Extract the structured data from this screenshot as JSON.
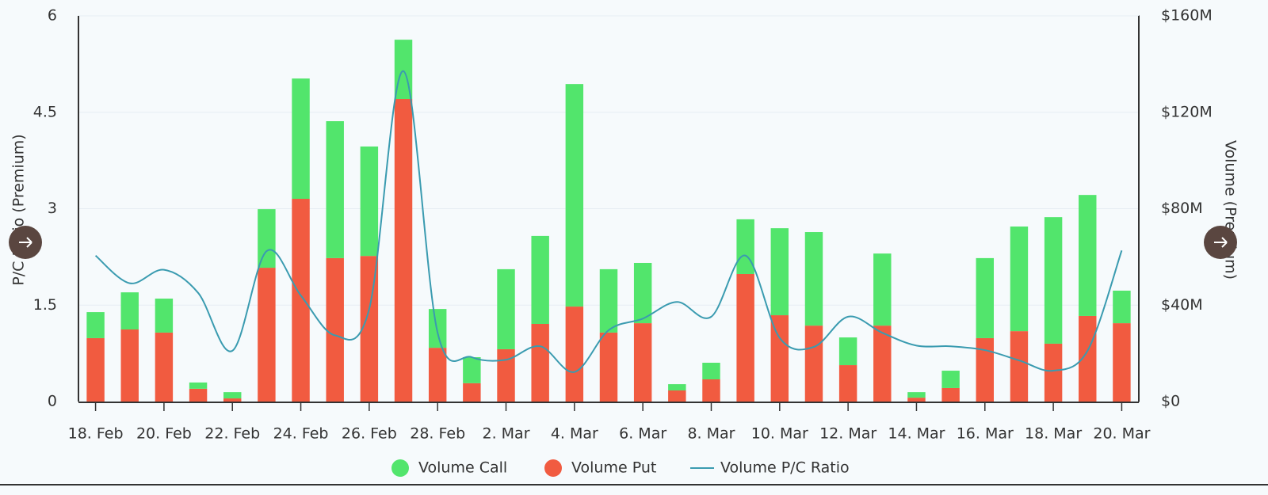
{
  "chart_data": {
    "type": "bar",
    "categories": [
      "18. Feb",
      null,
      "20. Feb",
      null,
      "22. Feb",
      null,
      "24. Feb",
      null,
      "26. Feb",
      null,
      "28. Feb",
      null,
      "2. Mar",
      null,
      "4. Mar",
      null,
      "6. Mar",
      null,
      "8. Mar",
      null,
      "10. Mar",
      null,
      "12. Mar",
      null,
      "14. Mar",
      null,
      "16. Mar",
      null,
      "18. Mar",
      null,
      "20. Mar"
    ],
    "y_label": "P/C Ratio (Premium)",
    "y2_label": "Volume (Premium)",
    "ylim": [
      0,
      6
    ],
    "yticks": [
      0,
      1.5,
      3,
      4.5,
      6
    ],
    "y2lim": [
      0,
      160000000
    ],
    "y2ticks": [
      {
        "value": 0,
        "label": "$0"
      },
      {
        "value": 40000000,
        "label": "$40M"
      },
      {
        "value": 80000000,
        "label": "$80M"
      },
      {
        "value": 120000000,
        "label": "$120M"
      },
      {
        "value": 160000000,
        "label": "$160M"
      }
    ],
    "grid": true,
    "stacked": true,
    "series": [
      {
        "name": "Volume Call",
        "color": "#52e56c",
        "axis": "y2",
        "type": "bar",
        "values": [
          10800000,
          15400000,
          14100000,
          2600000,
          2600000,
          24300000,
          49900000,
          56800000,
          45400000,
          24600000,
          16100000,
          10800000,
          33200000,
          36500000,
          92300000,
          26300000,
          25000000,
          2600000,
          6900000,
          22700000,
          36100000,
          38800000,
          11500000,
          29900000,
          2300000,
          7200000,
          33200000,
          43400000,
          52500000,
          50200000,
          13500000
        ]
      },
      {
        "name": "Volume Put",
        "color": "#f15b40",
        "axis": "y2",
        "type": "bar",
        "values": [
          26300000,
          29900000,
          28600000,
          5300000,
          1300000,
          55500000,
          84100000,
          59500000,
          60400000,
          125500000,
          22300000,
          7600000,
          21700000,
          32200000,
          39400000,
          28600000,
          32500000,
          4600000,
          9200000,
          52900000,
          35800000,
          31500000,
          15100000,
          31500000,
          1600000,
          5600000,
          26300000,
          29200000,
          24000000,
          35500000,
          32500000
        ]
      },
      {
        "name": "Volume P/C Ratio",
        "color": "#3a9bb0",
        "type": "line",
        "values": [
          2.27,
          1.84,
          2.05,
          1.69,
          0.79,
          2.34,
          1.65,
          1.03,
          1.44,
          5.14,
          1.07,
          0.69,
          0.65,
          0.86,
          0.46,
          1.11,
          1.29,
          1.55,
          1.32,
          2.27,
          0.99,
          0.85,
          1.32,
          1.07,
          0.87,
          0.86,
          0.8,
          0.64,
          0.48,
          0.79,
          2.35
        ]
      }
    ]
  }
}
